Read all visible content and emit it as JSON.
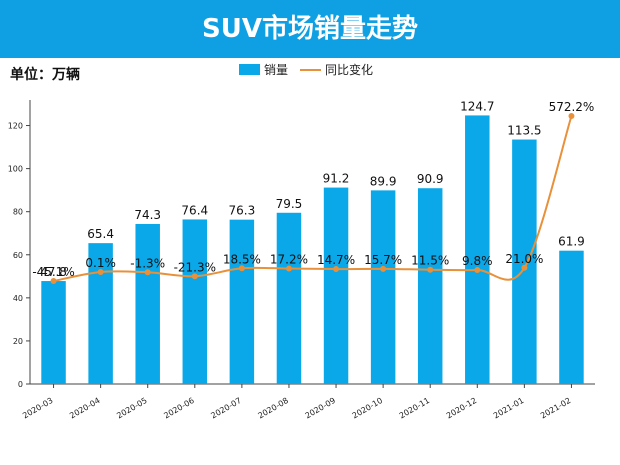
{
  "header": {
    "title": "SUV市场销量走势"
  },
  "unit_label": "单位：万辆",
  "colors": {
    "banner": "#0f9fe3",
    "bar": "#0aa8e8",
    "line": "#e8913a"
  },
  "chart_data": {
    "type": "bar",
    "title": "SUV市场销量走势",
    "categories": [
      "2020-03",
      "2020-04",
      "2020-05",
      "2020-06",
      "2020-07",
      "2020-08",
      "2020-09",
      "2020-10",
      "2020-11",
      "2020-12",
      "2021-01",
      "2021-02"
    ],
    "series": [
      {
        "name": "销量",
        "type": "bar",
        "axis": "left",
        "values": [
          47.8,
          65.4,
          74.3,
          76.4,
          76.3,
          79.5,
          91.2,
          89.9,
          90.9,
          124.7,
          113.5,
          61.9
        ],
        "labels": [
          "47.8",
          "65.4",
          "74.3",
          "76.4",
          "76.3",
          "79.5",
          "91.2",
          "89.9",
          "90.9",
          "124.7",
          "113.5",
          "61.9"
        ]
      },
      {
        "name": "同比变化",
        "type": "line",
        "axis": "secondary",
        "values": [
          -45.1,
          0.1,
          -1.3,
          -21.3,
          18.5,
          17.2,
          14.7,
          15.7,
          11.5,
          9.8,
          21.0,
          572.2
        ],
        "labels": [
          "-45.1%",
          "0.1%",
          "-1.3%",
          "-21.3%",
          "18.5%",
          "17.2%",
          "14.7%",
          "15.7%",
          "11.5%",
          "9.8%",
          "21.0%",
          "572.2%"
        ]
      }
    ],
    "ylim": [
      0,
      130
    ],
    "yticks": [
      0,
      20,
      40,
      60,
      80,
      100,
      120
    ],
    "xlabel": "",
    "ylabel": "",
    "legend": "top-center",
    "grid": false
  }
}
